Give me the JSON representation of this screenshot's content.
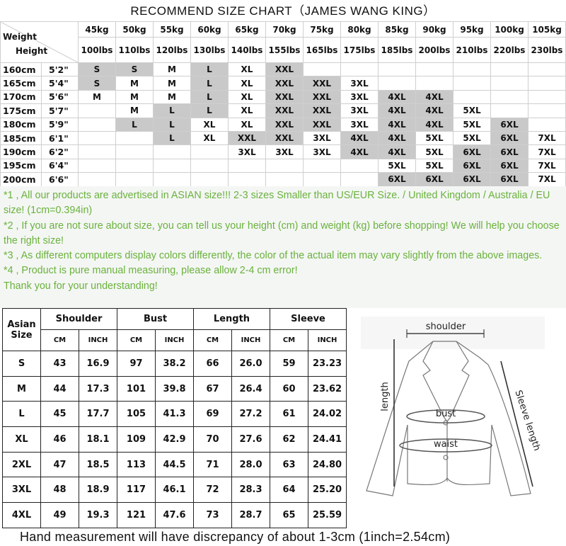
{
  "title": "RECOMMEND SIZE CHART（JAMES WANG KING）",
  "size_chart": {
    "corner_top": "Weight",
    "corner_bottom": "Height",
    "weights_kg": [
      "45kg",
      "50kg",
      "55kg",
      "60kg",
      "65kg",
      "70kg",
      "75kg",
      "80kg",
      "85kg",
      "90kg",
      "95kg",
      "100kg",
      "105kg"
    ],
    "weights_lbs": [
      "100lbs",
      "110lbs",
      "120lbs",
      "130lbs",
      "140lbs",
      "155lbs",
      "165lbs",
      "175lbs",
      "185lbs",
      "200lbs",
      "210lbs",
      "220lbs",
      "230lbs"
    ],
    "shade_color": "#c9c9c9",
    "rows": [
      {
        "cm": "160cm",
        "ft": "5'2\"",
        "sizes": [
          "S",
          "S",
          "M",
          "L",
          "XL",
          "XXL",
          "",
          "",
          "",
          "",
          "",
          "",
          ""
        ],
        "shaded": [
          1,
          1,
          0,
          1,
          0,
          1,
          0,
          0,
          0,
          0,
          0,
          0,
          0
        ]
      },
      {
        "cm": "165cm",
        "ft": "5'4\"",
        "sizes": [
          "S",
          "M",
          "M",
          "L",
          "XL",
          "XXL",
          "XXL",
          "3XL",
          "",
          "",
          "",
          "",
          ""
        ],
        "shaded": [
          1,
          0,
          0,
          1,
          0,
          1,
          1,
          0,
          0,
          0,
          0,
          0,
          0
        ]
      },
      {
        "cm": "170cm",
        "ft": "5'6\"",
        "sizes": [
          "M",
          "M",
          "M",
          "L",
          "XL",
          "XXL",
          "XXL",
          "3XL",
          "4XL",
          "4XL",
          "",
          "",
          ""
        ],
        "shaded": [
          0,
          0,
          0,
          1,
          0,
          1,
          1,
          0,
          1,
          1,
          0,
          0,
          0
        ]
      },
      {
        "cm": "175cm",
        "ft": "5'7\"",
        "sizes": [
          "",
          "M",
          "L",
          "L",
          "XL",
          "XXL",
          "XXL",
          "3XL",
          "4XL",
          "4XL",
          "5XL",
          "",
          ""
        ],
        "shaded": [
          0,
          0,
          1,
          1,
          0,
          1,
          1,
          0,
          1,
          1,
          0,
          0,
          0
        ]
      },
      {
        "cm": "180cm",
        "ft": "5'9\"",
        "sizes": [
          "",
          "L",
          "L",
          "XL",
          "XL",
          "XXL",
          "XXL",
          "3XL",
          "4XL",
          "4XL",
          "5XL",
          "6XL",
          ""
        ],
        "shaded": [
          0,
          1,
          1,
          0,
          0,
          1,
          1,
          0,
          1,
          1,
          0,
          1,
          0
        ]
      },
      {
        "cm": "185cm",
        "ft": "6'1\"",
        "sizes": [
          "",
          "",
          "L",
          "XL",
          "XXL",
          "XXL",
          "3XL",
          "4XL",
          "4XL",
          "5XL",
          "5XL",
          "6XL",
          "7XL"
        ],
        "shaded": [
          0,
          0,
          1,
          0,
          1,
          1,
          0,
          1,
          1,
          0,
          0,
          1,
          0
        ]
      },
      {
        "cm": "190cm",
        "ft": "6'2\"",
        "sizes": [
          "",
          "",
          "",
          "",
          "3XL",
          "3XL",
          "3XL",
          "4XL",
          "4XL",
          "5XL",
          "6XL",
          "6XL",
          "7XL"
        ],
        "shaded": [
          0,
          0,
          0,
          0,
          0,
          0,
          0,
          1,
          1,
          0,
          1,
          1,
          0
        ]
      },
      {
        "cm": "195cm",
        "ft": "6'4\"",
        "sizes": [
          "",
          "",
          "",
          "",
          "",
          "",
          "",
          "",
          "5XL",
          "5XL",
          "6XL",
          "6XL",
          "7XL"
        ],
        "shaded": [
          0,
          0,
          0,
          0,
          0,
          0,
          0,
          0,
          0,
          0,
          1,
          1,
          0
        ]
      },
      {
        "cm": "200cm",
        "ft": "6'6\"",
        "sizes": [
          "",
          "",
          "",
          "",
          "",
          "",
          "",
          "",
          "6XL",
          "6XL",
          "6XL",
          "6XL",
          "7XL"
        ],
        "shaded": [
          0,
          0,
          0,
          0,
          0,
          0,
          0,
          0,
          1,
          1,
          1,
          1,
          0
        ]
      }
    ]
  },
  "notes": {
    "color": "#6ab23c",
    "lines": [
      "*1 , All our products are advertised in ASIAN size!!! 2-3 sizes Smaller than US/EUR Size. / United Kingdom / Australia / EU size! (1cm=0.394in)",
      "*2 , If you are not sure about size, you can tell us your height (cm) and weight (kg) before shopping! We will help you choose the right size!",
      "*3 , As different computers display colors differently, the color of the actual item may vary slightly from the above images.",
      "*4 , Product is pure manual measuring, please allow 2-4 cm error!",
      "Thank you for your understanding!"
    ]
  },
  "measurements": {
    "size_header": "Asian Size",
    "groups": [
      "Shoulder",
      "Bust",
      "Length",
      "Sleeve"
    ],
    "units": [
      "CM",
      "INCH"
    ],
    "rows": [
      [
        "S",
        "43",
        "16.9",
        "97",
        "38.2",
        "66",
        "26.0",
        "59",
        "23.23"
      ],
      [
        "M",
        "44",
        "17.3",
        "101",
        "39.8",
        "67",
        "26.4",
        "60",
        "23.62"
      ],
      [
        "L",
        "45",
        "17.7",
        "105",
        "41.3",
        "69",
        "27.2",
        "61",
        "24.02"
      ],
      [
        "XL",
        "46",
        "18.1",
        "109",
        "42.9",
        "70",
        "27.6",
        "62",
        "24.41"
      ],
      [
        "2XL",
        "47",
        "18.5",
        "113",
        "44.5",
        "71",
        "28.0",
        "63",
        "24.80"
      ],
      [
        "3XL",
        "48",
        "18.9",
        "117",
        "46.1",
        "72",
        "28.3",
        "64",
        "25.20"
      ],
      [
        "4XL",
        "49",
        "19.3",
        "121",
        "47.6",
        "73",
        "28.7",
        "65",
        "25.59"
      ]
    ]
  },
  "diagram": {
    "shoulder": "shoulder",
    "length": "length",
    "bust": "bust",
    "waist": "waist",
    "sleeve": "Sleeve length"
  },
  "footer": "Hand measurement will have discrepancy of about 1-3cm (1inch=2.54cm)"
}
